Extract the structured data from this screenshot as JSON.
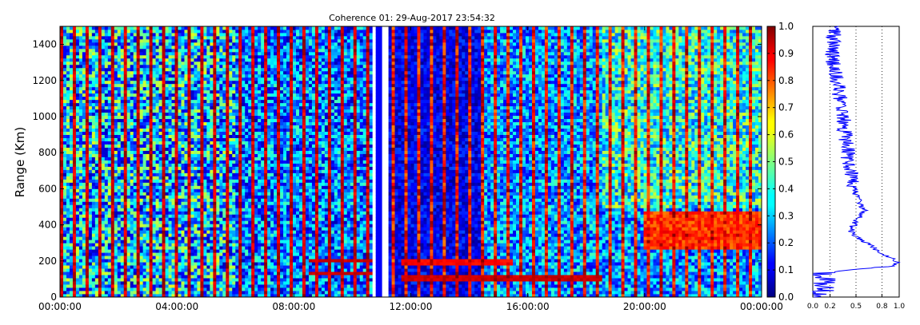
{
  "chart_data": [
    {
      "type": "heatmap",
      "title": "Coherence 01: 29-Aug-2017 23:54:32",
      "ylabel": "Range (Km)",
      "xlabel": "",
      "x_tick_labels": [
        "00:00:00",
        "04:00:00",
        "08:00:00",
        "12:00:00",
        "16:00:00",
        "20:00:00",
        "00:00:00"
      ],
      "x_tick_hours": [
        0,
        4,
        8,
        12,
        16,
        20,
        24
      ],
      "xlim_hours": [
        0,
        24
      ],
      "y_ticks": [
        0,
        200,
        400,
        600,
        800,
        1000,
        1200,
        1400
      ],
      "ylim": [
        0,
        1500
      ],
      "data_gap_hours": [
        10.7,
        11.2
      ],
      "colorbar": {
        "min": 0.0,
        "max": 1.0,
        "ticks": [
          "0.0",
          "0.1",
          "0.2",
          "0.3",
          "0.4",
          "0.5",
          "0.6",
          "0.7",
          "0.8",
          "0.9",
          "1.0"
        ],
        "colormap": "jet"
      },
      "features": [
        {
          "description": "horizontal band",
          "start_hour": 8.5,
          "end_hour": 10.7,
          "range_km": 200,
          "value": 0.95
        },
        {
          "description": "horizontal band",
          "start_hour": 8.5,
          "end_hour": 10.7,
          "range_km": 130,
          "value": 0.95
        },
        {
          "description": "horizontal band",
          "start_hour": 11.7,
          "end_hour": 18.5,
          "range_km": 110,
          "value": 0.95
        },
        {
          "description": "horizontal band",
          "start_hour": 11.7,
          "end_hour": 15.5,
          "range_km": 190,
          "value": 0.9
        },
        {
          "description": "high coherence region",
          "start_hour": 20.0,
          "end_hour": 24.0,
          "range_km": [
            260,
            480
          ],
          "value": 0.9
        }
      ]
    },
    {
      "type": "line",
      "xlim": [
        0.0,
        1.0
      ],
      "x_tick_labels": [
        "0.0",
        "0.2",
        "0.5",
        "0.8",
        "1.0"
      ],
      "x_ticks": [
        0.0,
        0.2,
        0.5,
        0.8,
        1.0
      ],
      "ylim": [
        0,
        1500
      ],
      "grid_x": [
        0.2,
        0.5,
        0.8
      ],
      "line_color": "#0000ff",
      "profile": [
        {
          "range": 0,
          "value": 0.1
        },
        {
          "range": 60,
          "value": 0.12
        },
        {
          "range": 100,
          "value": 0.15
        },
        {
          "range": 130,
          "value": 0.1
        },
        {
          "range": 150,
          "value": 0.4
        },
        {
          "range": 170,
          "value": 0.9
        },
        {
          "range": 190,
          "value": 1.0
        },
        {
          "range": 230,
          "value": 0.85
        },
        {
          "range": 290,
          "value": 0.65
        },
        {
          "range": 350,
          "value": 0.45
        },
        {
          "range": 380,
          "value": 0.45
        },
        {
          "range": 420,
          "value": 0.5
        },
        {
          "range": 480,
          "value": 0.6
        },
        {
          "range": 560,
          "value": 0.5
        },
        {
          "range": 650,
          "value": 0.45
        },
        {
          "range": 800,
          "value": 0.4
        },
        {
          "range": 1000,
          "value": 0.35
        },
        {
          "range": 1200,
          "value": 0.28
        },
        {
          "range": 1350,
          "value": 0.22
        },
        {
          "range": 1500,
          "value": 0.25
        }
      ]
    }
  ]
}
